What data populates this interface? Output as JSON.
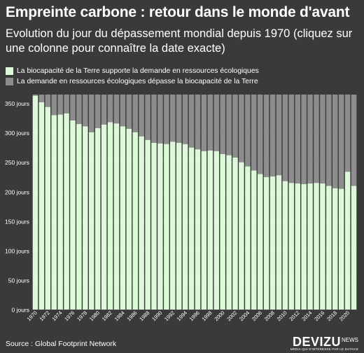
{
  "header": {
    "title": "Empreinte carbone : retour dans le monde d'avant",
    "subtitle": "Evolution du jour du dépassement mondial depuis 1970 (cliquez sur une colonne pour connaître la date exacte)"
  },
  "footer": {
    "source": "Source : Global Footprint Network",
    "brand": "DEVIZU",
    "brand_sub": "NEWS",
    "brand_tagline": "MEDIA QUI S'INTERESSE PAR LE DATAVIZ"
  },
  "colors": {
    "background": "#3a3a3a",
    "supply": "#ddf9d9",
    "demand": "#8d8d8d",
    "text": "#ffffff",
    "grid": "#5a5a5a"
  },
  "chart_data": {
    "type": "bar",
    "stacked": true,
    "ylim": [
      0,
      365
    ],
    "yticks": [
      {
        "value": 0,
        "label": "0 jours"
      },
      {
        "value": 50,
        "label": "50 jours"
      },
      {
        "value": 100,
        "label": "100 jours"
      },
      {
        "value": 150,
        "label": "150 jours"
      },
      {
        "value": 200,
        "label": "200 jours"
      },
      {
        "value": 250,
        "label": "250 jours"
      },
      {
        "value": 300,
        "label": "300 jours"
      },
      {
        "value": 350,
        "label": "350 jours"
      }
    ],
    "grid": true,
    "legend_position": "top-left",
    "categories": [
      "1970",
      "1971",
      "1972",
      "1973",
      "1974",
      "1975",
      "1976",
      "1977",
      "1978",
      "1979",
      "1980",
      "1981",
      "1982",
      "1983",
      "1984",
      "1985",
      "1986",
      "1987",
      "1988",
      "1989",
      "1990",
      "1991",
      "1992",
      "1993",
      "1994",
      "1995",
      "1996",
      "1997",
      "1998",
      "1999",
      "2000",
      "2001",
      "2002",
      "2003",
      "2004",
      "2005",
      "2006",
      "2007",
      "2008",
      "2009",
      "2010",
      "2011",
      "2012",
      "2013",
      "2014",
      "2015",
      "2016",
      "2017",
      "2018",
      "2019",
      "2020",
      "2021"
    ],
    "xtick_labels": [
      "1970",
      "1972",
      "1974",
      "1976",
      "1978",
      "1980",
      "1982",
      "1984",
      "1986",
      "1988",
      "1990",
      "1992",
      "1994",
      "1996",
      "1998",
      "2000",
      "2002",
      "2004",
      "2006",
      "2008",
      "2010",
      "2012",
      "2014",
      "2016",
      "2018",
      "2020"
    ],
    "series": [
      {
        "name": "La biocapacité de la Terre supporte la demande en ressources écologiques",
        "values": [
          363,
          352,
          344,
          330,
          331,
          333,
          321,
          315,
          311,
          301,
          308,
          314,
          318,
          316,
          311,
          307,
          301,
          294,
          288,
          283,
          282,
          281,
          285,
          283,
          281,
          275,
          272,
          269,
          270,
          269,
          264,
          262,
          258,
          250,
          243,
          236,
          230,
          225,
          226,
          228,
          218,
          215,
          214,
          213,
          214,
          215,
          214,
          210,
          206,
          205,
          234,
          210
        ]
      },
      {
        "name": "La demande en ressources écologiques dépasse la biocapacité de la Terre",
        "values": [
          2,
          13,
          21,
          35,
          34,
          32,
          44,
          50,
          54,
          64,
          57,
          51,
          47,
          49,
          54,
          58,
          64,
          71,
          77,
          82,
          83,
          84,
          80,
          82,
          84,
          90,
          93,
          96,
          95,
          96,
          101,
          103,
          107,
          115,
          122,
          129,
          135,
          140,
          139,
          137,
          147,
          150,
          151,
          152,
          151,
          150,
          151,
          155,
          159,
          160,
          131,
          155
        ]
      }
    ]
  }
}
